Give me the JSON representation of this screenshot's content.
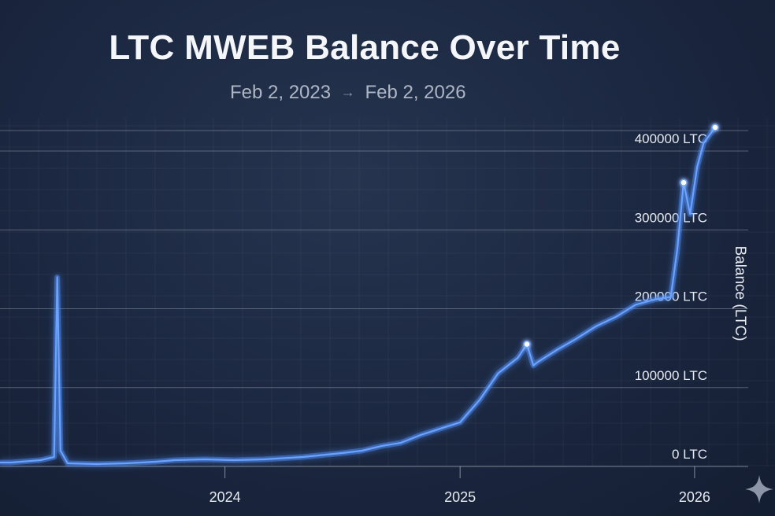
{
  "chart_data": {
    "type": "line",
    "title": "LTC MWEB Balance Over Time",
    "subtitle_start": "Feb 2, 2023",
    "subtitle_arrow": "→",
    "subtitle_end": "Feb 2, 2026",
    "xlabel": "",
    "ylabel": "Balance (LTC)",
    "x_ticks": [
      "2024",
      "2025",
      "2026"
    ],
    "y_ticks": [
      {
        "value": 0,
        "label": "0 LTC"
      },
      {
        "value": 100000,
        "label": "100000 LTC"
      },
      {
        "value": 200000,
        "label": "200000 LTC"
      },
      {
        "value": 300000,
        "label": "300000 LTC"
      },
      {
        "value": 400000,
        "label": "400000 LTC"
      }
    ],
    "ylim": [
      0,
      425000
    ],
    "xlim": [
      "2023-02-02",
      "2026-02-02"
    ],
    "grid": true,
    "line_color": "#4f8ef7",
    "series": [
      {
        "x": [
          "2023-02-02",
          "2023-03-20",
          "2023-04-10",
          "2023-04-15",
          "2023-04-20",
          "2023-05-01",
          "2023-06-15",
          "2023-08-01",
          "2023-09-15",
          "2023-10-15",
          "2023-12-01",
          "2024-01-15",
          "2024-03-01",
          "2024-05-01",
          "2024-07-01",
          "2024-08-01",
          "2024-09-01",
          "2024-10-01",
          "2024-11-01",
          "2024-12-01",
          "2025-01-01",
          "2025-02-01",
          "2025-03-01",
          "2025-04-01",
          "2025-04-15",
          "2025-04-25",
          "2025-05-01",
          "2025-06-01",
          "2025-07-01",
          "2025-08-01",
          "2025-09-01",
          "2025-10-01",
          "2025-11-01",
          "2025-11-25",
          "2025-12-05",
          "2025-12-15",
          "2025-12-25",
          "2026-01-05",
          "2026-01-15",
          "2026-02-02"
        ],
        "y": [
          5000,
          8000,
          12000,
          240000,
          20000,
          4000,
          3000,
          4000,
          6000,
          8000,
          9000,
          8000,
          9000,
          12000,
          17000,
          20000,
          26000,
          30000,
          40000,
          48000,
          56000,
          85000,
          118000,
          138000,
          155000,
          128000,
          132000,
          148000,
          162000,
          178000,
          190000,
          205000,
          212000,
          215000,
          275000,
          360000,
          320000,
          380000,
          410000,
          430000
        ]
      }
    ],
    "highlight_points": [
      {
        "x": "2025-04-15",
        "y": 155000
      },
      {
        "x": "2025-12-15",
        "y": 360000
      },
      {
        "x": "2026-02-02",
        "y": 430000
      }
    ]
  }
}
